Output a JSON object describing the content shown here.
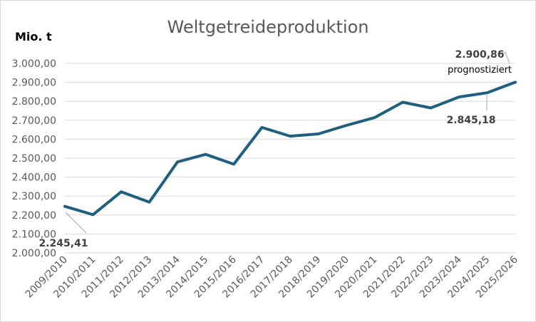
{
  "chart_data": {
    "type": "line",
    "title": "Weltgetreideproduktion",
    "ylabel": "Mio. t",
    "xlabel": "",
    "ylim": [
      2000,
      3000
    ],
    "ytick_step": 100,
    "ytick_labels": [
      "2.000,00",
      "2.100,00",
      "2.200,00",
      "2.300,00",
      "2.400,00",
      "2.500,00",
      "2.600,00",
      "2.700,00",
      "2.800,00",
      "2.900,00",
      "3.000,00"
    ],
    "grid": true,
    "legend": "none",
    "line_color": "#1f5f7f",
    "categories": [
      "2009/2010",
      "2010/2011",
      "2011/2012",
      "2012/2013",
      "2013/2014",
      "2014/2015",
      "2015/2016",
      "2016/2017",
      "2017/2018",
      "2018/2019",
      "2019/2020",
      "2020/2021",
      "2021/2022",
      "2022/2023",
      "2023/2024",
      "2024/2025",
      "2025/2026"
    ],
    "series": [
      {
        "values": [
          2245.41,
          2202,
          2322,
          2268,
          2480,
          2520,
          2468,
          2662,
          2616,
          2628,
          2673,
          2714,
          2795,
          2765,
          2823,
          2845.18,
          2900.86
        ]
      }
    ],
    "annotations": [
      {
        "index": 0,
        "text": "2.245,41"
      },
      {
        "index": 15,
        "text": "2.845,18"
      },
      {
        "index": 16,
        "text": "2.900,86",
        "note": "prognostiziert"
      }
    ]
  }
}
